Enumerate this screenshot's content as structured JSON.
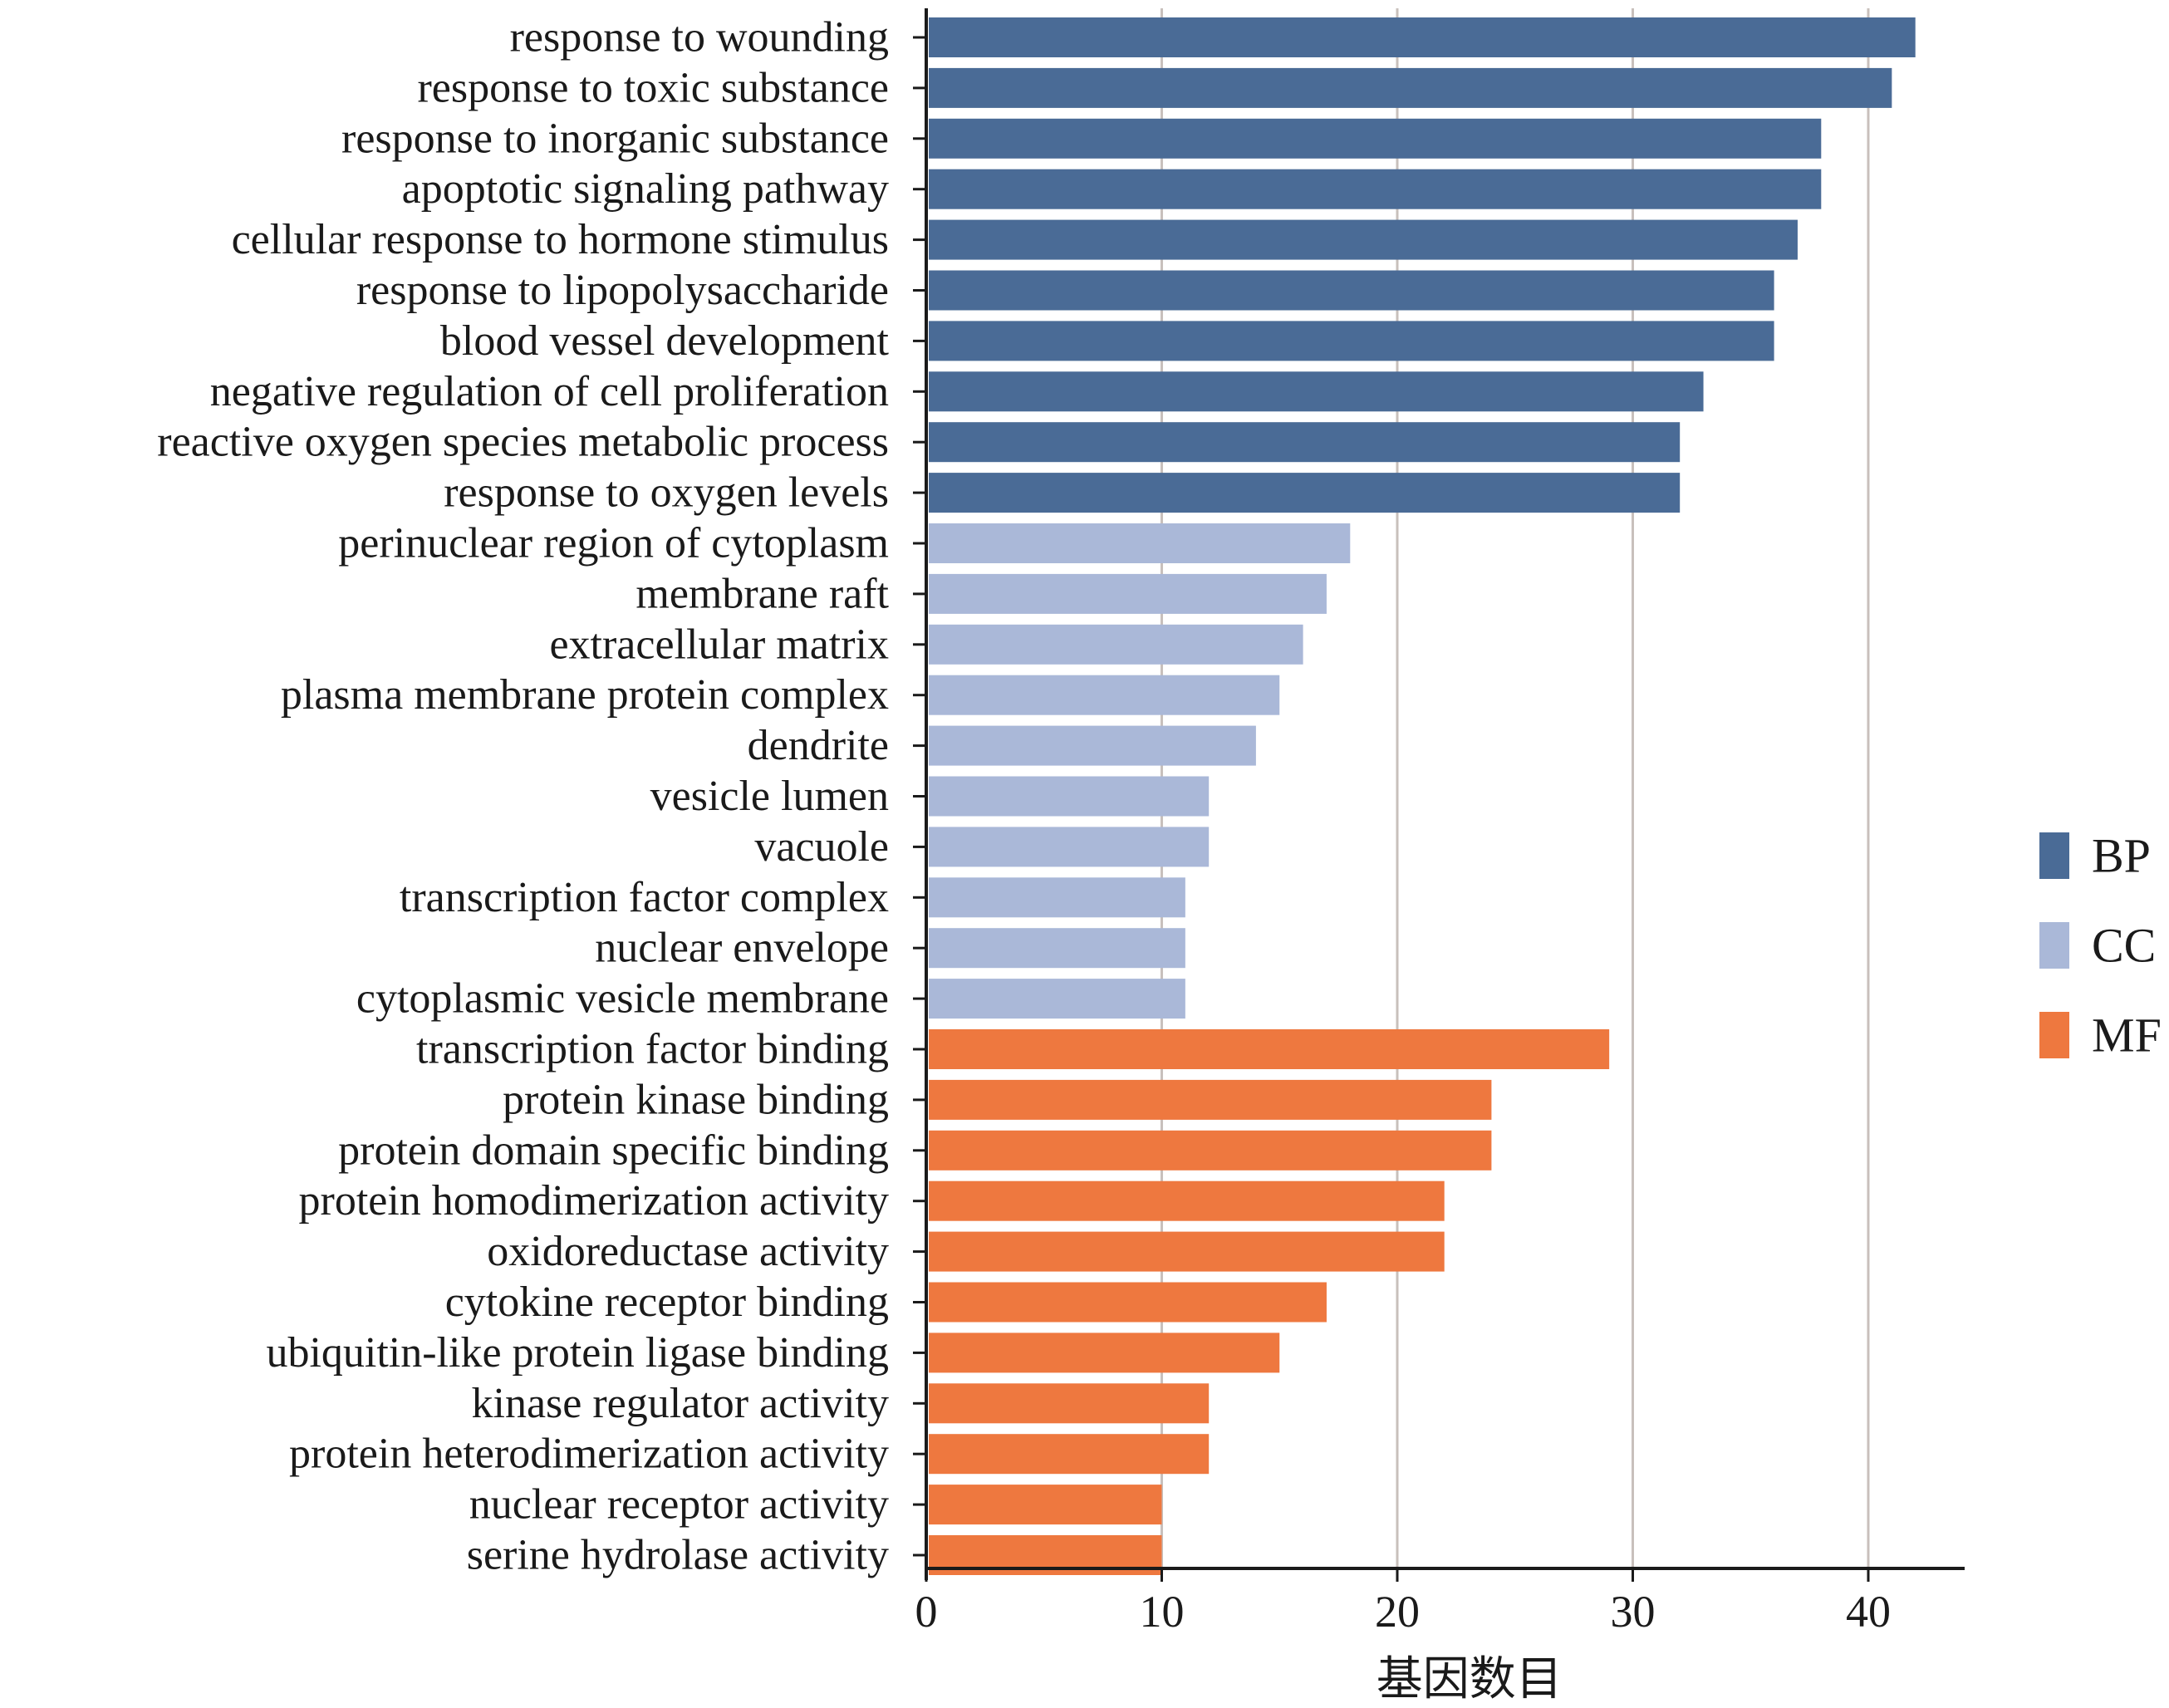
{
  "chart_data": {
    "type": "bar",
    "orientation": "horizontal",
    "xlabel": "基因数目",
    "ylabel": "",
    "xlim": [
      0,
      44
    ],
    "xticks": [
      0,
      10,
      20,
      30,
      40
    ],
    "grid": "vertical",
    "legend_position": "right",
    "categories": [
      "response to wounding",
      "response to toxic substance",
      "response to inorganic substance",
      "apoptotic signaling pathway",
      "cellular response to hormone stimulus",
      "response to lipopolysaccharide",
      "blood vessel development",
      "negative regulation of cell proliferation",
      "reactive oxygen species metabolic process",
      "response to oxygen levels",
      "perinuclear region of cytoplasm",
      "membrane raft",
      "extracellular matrix",
      "plasma membrane protein complex",
      "dendrite",
      "vesicle lumen",
      "vacuole",
      "transcription factor complex",
      "nuclear envelope",
      "cytoplasmic vesicle membrane",
      "transcription factor binding",
      "protein kinase binding",
      "protein domain specific binding",
      "protein homodimerization activity",
      "oxidoreductase activity",
      "cytokine receptor binding",
      "ubiquitin-like protein ligase binding",
      "kinase regulator activity",
      "protein heterodimerization activity",
      "nuclear receptor activity",
      "serine hydrolase activity"
    ],
    "values": [
      42,
      41,
      38,
      38,
      37,
      36,
      36,
      33,
      32,
      32,
      18,
      17,
      16,
      15,
      14,
      12,
      12,
      11,
      11,
      11,
      29,
      24,
      24,
      22,
      22,
      17,
      15,
      12,
      12,
      10,
      10
    ],
    "groups": [
      "BP",
      "BP",
      "BP",
      "BP",
      "BP",
      "BP",
      "BP",
      "BP",
      "BP",
      "BP",
      "CC",
      "CC",
      "CC",
      "CC",
      "CC",
      "CC",
      "CC",
      "CC",
      "CC",
      "CC",
      "MF",
      "MF",
      "MF",
      "MF",
      "MF",
      "MF",
      "MF",
      "MF",
      "MF",
      "MF",
      "MF"
    ],
    "legend": [
      {
        "name": "BP",
        "color": "#4a6b96"
      },
      {
        "name": "CC",
        "color": "#aab8d8"
      },
      {
        "name": "MF",
        "color": "#ee783f"
      }
    ],
    "gridline_color": "#c8c0bc",
    "axis_color": "#1a1a1a"
  }
}
